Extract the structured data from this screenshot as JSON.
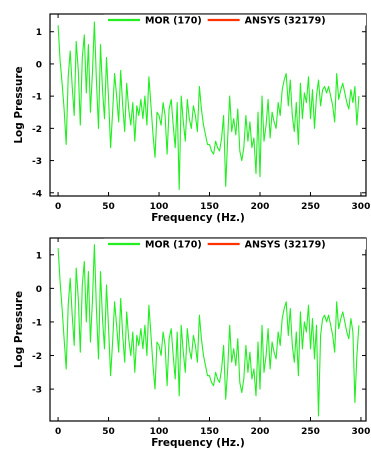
{
  "chart_data": [
    {
      "type": "line",
      "xlabel": "Frequency (Hz.)",
      "ylabel": "Log Pressure",
      "xlim": [
        -8,
        305
      ],
      "ylim": [
        -4.1,
        1.55
      ],
      "xticks": [
        0,
        50,
        100,
        150,
        200,
        250,
        300
      ],
      "xtick_labels": [
        "0",
        "50",
        "100",
        "150",
        "200",
        "250",
        "300"
      ],
      "yticks": [
        1,
        0,
        -1,
        -2,
        -3,
        -4
      ],
      "ytick_labels": [
        "1",
        "0",
        "-1",
        "-2",
        "-3",
        "-4"
      ],
      "legend": {
        "placement": "top-right"
      },
      "series": [
        {
          "name": "MOR (170)",
          "color": "#22ee22",
          "x": [
            0,
            2,
            4,
            6,
            8,
            10,
            12,
            14,
            16,
            18,
            20,
            22,
            24,
            26,
            28,
            30,
            32,
            34,
            36,
            38,
            40,
            42,
            44,
            46,
            48,
            50,
            52,
            54,
            56,
            58,
            60,
            62,
            64,
            66,
            68,
            70,
            72,
            74,
            76,
            78,
            80,
            82,
            84,
            86,
            88,
            90,
            92,
            94,
            96,
            98,
            100,
            102,
            104,
            106,
            108,
            110,
            112,
            114,
            116,
            118,
            120,
            122,
            124,
            126,
            128,
            130,
            132,
            134,
            136,
            138,
            140,
            142,
            144,
            146,
            148,
            150,
            152,
            154,
            156,
            158,
            160,
            162,
            164,
            166,
            168,
            170,
            172,
            174,
            176,
            178,
            180,
            182,
            184,
            186,
            188,
            190,
            192,
            194,
            196,
            198,
            200,
            202,
            204,
            206,
            208,
            210,
            212,
            214,
            216,
            218,
            220,
            222,
            224,
            226,
            228,
            230,
            232,
            234,
            236,
            238,
            240,
            242,
            244,
            246,
            248,
            250,
            252,
            254,
            256,
            258,
            260,
            262,
            264,
            266,
            268,
            270,
            272,
            274,
            276,
            278,
            280,
            282,
            284,
            286,
            288,
            290,
            292,
            294,
            296,
            298
          ],
          "y": [
            1.2,
            0.1,
            -0.6,
            -1.4,
            -2.5,
            -0.4,
            0.4,
            -0.7,
            -1.6,
            0.7,
            -0.2,
            -1.9,
            0.2,
            0.9,
            -0.9,
            0.6,
            -1.5,
            -0.3,
            1.3,
            -0.5,
            -2.0,
            0.6,
            -0.8,
            -1.7,
            0.2,
            -1.1,
            -2.6,
            -1.5,
            -0.3,
            -1.0,
            -1.8,
            -0.2,
            -1.3,
            -2.1,
            -0.6,
            -1.4,
            -1.9,
            -1.2,
            -2.4,
            -1.3,
            -1.6,
            -1.1,
            -1.7,
            -1.0,
            -1.9,
            -0.4,
            -1.3,
            -2.2,
            -2.9,
            -1.5,
            -1.6,
            -1.9,
            -1.2,
            -1.6,
            -2.8,
            -1.4,
            -1.1,
            -1.9,
            -2.6,
            -1.2,
            -3.9,
            -1.0,
            -1.8,
            -2.4,
            -1.1,
            -1.7,
            -2.0,
            -1.3,
            -1.6,
            -2.1,
            -0.7,
            -1.4,
            -1.9,
            -2.2,
            -2.5,
            -2.5,
            -2.7,
            -2.8,
            -2.4,
            -2.6,
            -2.7,
            -2.3,
            -1.6,
            -3.8,
            -2.3,
            -1.0,
            -2.1,
            -1.7,
            -2.2,
            -1.4,
            -2.7,
            -3.0,
            -2.6,
            -1.6,
            -2.4,
            -1.8,
            -2.6,
            -2.3,
            -3.4,
            -1.5,
            -3.5,
            -1.0,
            -2.4,
            -1.9,
            -1.1,
            -2.3,
            -1.5,
            -1.8,
            -2.0,
            -1.2,
            -1.6,
            -0.8,
            -0.5,
            -0.3,
            -1.3,
            -0.5,
            -1.6,
            -2.1,
            -1.2,
            -2.5,
            -0.6,
            -1.7,
            -0.9,
            -1.2,
            -0.4,
            -1.7,
            -0.8,
            -2.0,
            -1.0,
            -0.5,
            -1.3,
            -0.8,
            -0.7,
            -0.9,
            -0.7,
            -1.0,
            -1.3,
            -1.8,
            -0.3,
            -1.1,
            -0.8,
            -0.6,
            -0.9,
            -1.2,
            -1.4,
            -0.8,
            -1.2,
            -0.7,
            -1.9,
            -1.0
          ]
        },
        {
          "name": "ANSYS (32179)",
          "color": "#ff3300",
          "x": [],
          "y": []
        }
      ]
    },
    {
      "type": "line",
      "xlabel": "Frequency (Hz.)",
      "ylabel": "Log Pressure",
      "xlim": [
        -8,
        305
      ],
      "ylim": [
        -3.95,
        1.5
      ],
      "xticks": [
        0,
        50,
        100,
        150,
        200,
        250,
        300
      ],
      "xtick_labels": [
        "0",
        "50",
        "100",
        "150",
        "200",
        "250",
        "300"
      ],
      "yticks": [
        1,
        0,
        -1,
        -2,
        -3
      ],
      "ytick_labels": [
        "1",
        "0",
        "-1",
        "-2",
        "-3"
      ],
      "legend": {
        "placement": "top-right"
      },
      "series": [
        {
          "name": "MOR (170)",
          "color": "#22ee22",
          "x": [
            0,
            2,
            4,
            6,
            8,
            10,
            12,
            14,
            16,
            18,
            20,
            22,
            24,
            26,
            28,
            30,
            32,
            34,
            36,
            38,
            40,
            42,
            44,
            46,
            48,
            50,
            52,
            54,
            56,
            58,
            60,
            62,
            64,
            66,
            68,
            70,
            72,
            74,
            76,
            78,
            80,
            82,
            84,
            86,
            88,
            90,
            92,
            94,
            96,
            98,
            100,
            102,
            104,
            106,
            108,
            110,
            112,
            114,
            116,
            118,
            120,
            122,
            124,
            126,
            128,
            130,
            132,
            134,
            136,
            138,
            140,
            142,
            144,
            146,
            148,
            150,
            152,
            154,
            156,
            158,
            160,
            162,
            164,
            166,
            168,
            170,
            172,
            174,
            176,
            178,
            180,
            182,
            184,
            186,
            188,
            190,
            192,
            194,
            196,
            198,
            200,
            202,
            204,
            206,
            208,
            210,
            212,
            214,
            216,
            218,
            220,
            222,
            224,
            226,
            228,
            230,
            232,
            234,
            236,
            238,
            240,
            242,
            244,
            246,
            248,
            250,
            252,
            254,
            256,
            258,
            260,
            262,
            264,
            266,
            268,
            270,
            272,
            274,
            276,
            278,
            280,
            282,
            284,
            286,
            288,
            290,
            292,
            294,
            296,
            298
          ],
          "y": [
            1.2,
            0.2,
            -0.6,
            -1.5,
            -2.4,
            -0.5,
            0.3,
            -0.8,
            -1.7,
            0.6,
            -0.3,
            -1.9,
            0.1,
            0.8,
            -1.0,
            0.5,
            -1.6,
            -0.4,
            1.3,
            -0.6,
            -2.1,
            0.5,
            -0.9,
            -1.8,
            0.1,
            -1.2,
            -2.6,
            -1.6,
            -0.4,
            -1.1,
            -1.9,
            -0.3,
            -1.4,
            -2.2,
            -0.7,
            -1.5,
            -2.0,
            -1.3,
            -2.5,
            -1.4,
            -1.7,
            -1.2,
            -1.8,
            -1.1,
            -2.0,
            -0.5,
            -1.4,
            -2.3,
            -3.0,
            -1.6,
            -1.7,
            -2.0,
            -1.3,
            -1.7,
            -2.9,
            -1.5,
            -1.2,
            -2.0,
            -2.7,
            -1.3,
            -3.2,
            -1.1,
            -1.9,
            -2.5,
            -1.2,
            -1.8,
            -2.1,
            -1.4,
            -1.7,
            -2.2,
            -0.8,
            -1.5,
            -2.0,
            -2.3,
            -2.6,
            -2.6,
            -2.8,
            -2.9,
            -2.5,
            -2.7,
            -2.8,
            -2.4,
            -1.7,
            -3.3,
            -2.4,
            -1.1,
            -2.2,
            -1.8,
            -2.3,
            -1.5,
            -2.8,
            -3.1,
            -2.7,
            -1.7,
            -2.5,
            -1.9,
            -2.7,
            -2.4,
            -3.2,
            -1.6,
            -3.0,
            -1.1,
            -2.5,
            -2.0,
            -1.2,
            -2.4,
            -1.6,
            -1.9,
            -2.1,
            -1.3,
            -1.7,
            -0.9,
            -0.6,
            -0.4,
            -1.4,
            -0.6,
            -1.7,
            -2.2,
            -1.3,
            -2.6,
            -0.7,
            -1.8,
            -1.0,
            -1.3,
            -0.5,
            -1.8,
            -0.9,
            -2.1,
            -1.1,
            -3.8,
            -1.4,
            -0.9,
            -0.8,
            -1.0,
            -0.8,
            -1.1,
            -1.4,
            -1.9,
            -0.4,
            -1.2,
            -0.9,
            -0.7,
            -1.0,
            -1.3,
            -1.5,
            -0.9,
            -1.3,
            -3.4,
            -2.0,
            -1.1
          ]
        },
        {
          "name": "ANSYS (32179)",
          "color": "#ff3300",
          "x": [],
          "y": []
        }
      ]
    }
  ]
}
